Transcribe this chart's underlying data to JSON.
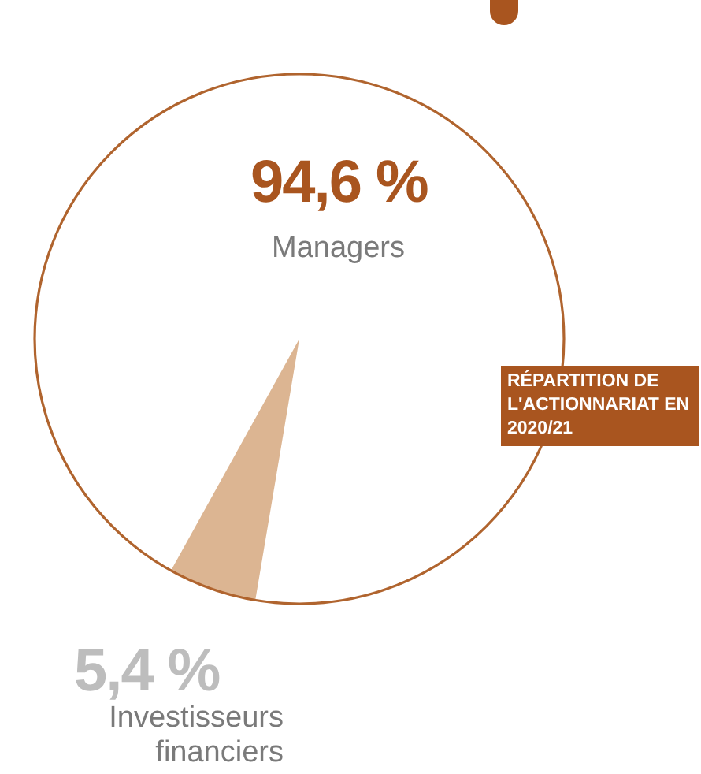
{
  "chart_data": {
    "type": "pie",
    "title": "RÉPARTITION DE L'ACTIONNARIAT EN 2020/21",
    "categories": [
      "Managers",
      "Investisseurs financiers"
    ],
    "values": [
      94.6,
      5.4
    ],
    "value_labels": [
      "94,6 %",
      "5,4 %"
    ],
    "colors": [
      "#ffffff",
      "#dcb592"
    ],
    "legend": false
  }
}
